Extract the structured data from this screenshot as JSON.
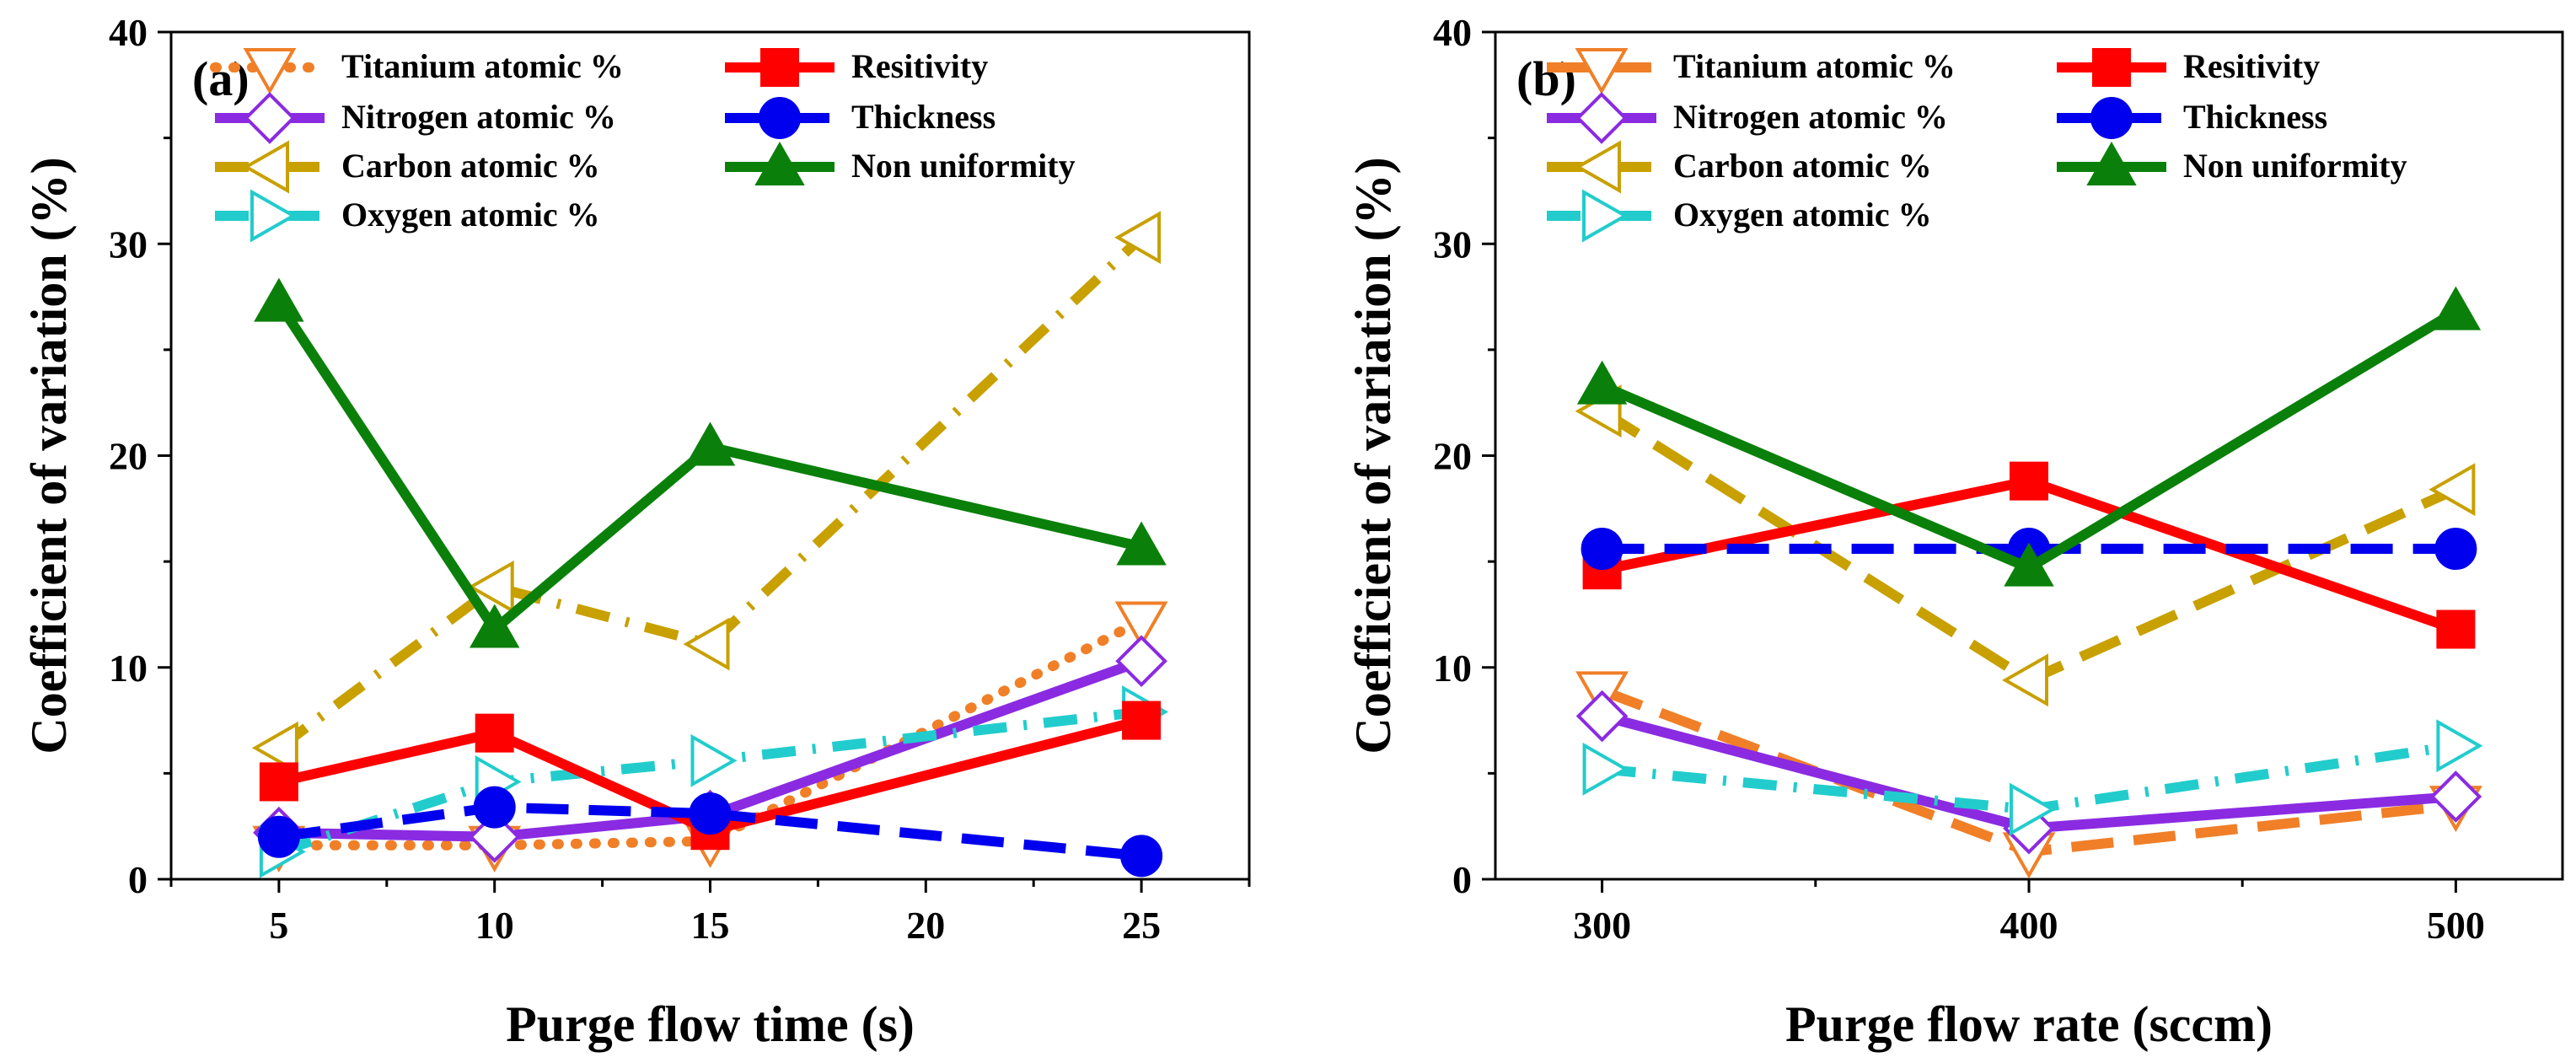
{
  "chart_data": [
    {
      "type": "line",
      "panel_label": "(a)",
      "xlabel": "Purge flow time (s)",
      "ylabel": "Coefficient of variation (%)",
      "x": [
        5,
        10,
        15,
        25
      ],
      "xticks": [
        "5",
        "10",
        "15",
        "20",
        "25"
      ],
      "xtick_values": [
        5,
        10,
        15,
        20,
        25
      ],
      "xlim": [
        2.5,
        27.5
      ],
      "ylim": [
        0,
        40
      ],
      "yticks": [
        "0",
        "10",
        "20",
        "30",
        "40"
      ],
      "ytick_values": [
        0,
        10,
        20,
        30,
        40
      ],
      "grid": false,
      "legend_position": "top",
      "series": [
        {
          "name": "Titanium atomic %",
          "values": [
            1.6,
            1.6,
            1.8,
            12.2
          ],
          "color": "#f07f28",
          "dash": "dot",
          "marker": "triangle-down-open"
        },
        {
          "name": "Nitrogen atomic %",
          "values": [
            2.2,
            2.0,
            3.0,
            10.3
          ],
          "color": "#8a2be2",
          "dash": "solid",
          "marker": "diamond-open"
        },
        {
          "name": "Carbon atomic %",
          "values": [
            6.2,
            13.8,
            11.1,
            30.3
          ],
          "color": "#c8a000",
          "dash": "dashdot",
          "marker": "triangle-left-open"
        },
        {
          "name": "Oxygen atomic %",
          "values": [
            1.3,
            4.6,
            5.6,
            7.9
          ],
          "color": "#22cccc",
          "dash": "dashdot",
          "marker": "triangle-right-open"
        },
        {
          "name": "Resitivity",
          "values": [
            4.6,
            6.9,
            2.3,
            7.5
          ],
          "color": "#ff0000",
          "dash": "solid",
          "marker": "square"
        },
        {
          "name": "Thickness",
          "values": [
            2.0,
            3.4,
            3.1,
            1.1
          ],
          "color": "#0000ee",
          "dash": "dash",
          "marker": "circle"
        },
        {
          "name": "Non uniformity",
          "values": [
            27.2,
            11.8,
            20.4,
            15.7
          ],
          "color": "#0a800a",
          "dash": "solid",
          "marker": "triangle-up"
        }
      ]
    },
    {
      "type": "line",
      "panel_label": "(b)",
      "xlabel": "Purge flow rate (sccm)",
      "ylabel": "Coefficient of variation (%)",
      "x": [
        300,
        400,
        500
      ],
      "xticks": [
        "300",
        "400",
        "500"
      ],
      "xtick_values": [
        300,
        400,
        500
      ],
      "xlim": [
        275,
        525
      ],
      "ylim": [
        0,
        40
      ],
      "yticks": [
        "0",
        "10",
        "20",
        "30",
        "40"
      ],
      "ytick_values": [
        0,
        10,
        20,
        30,
        40
      ],
      "grid": false,
      "legend_position": "top",
      "series": [
        {
          "name": "Titanium atomic %",
          "values": [
            8.9,
            1.3,
            3.5
          ],
          "color": "#f07f28",
          "dash": "dash",
          "marker": "triangle-down-open"
        },
        {
          "name": "Nitrogen atomic %",
          "values": [
            7.7,
            2.4,
            3.9
          ],
          "color": "#8a2be2",
          "dash": "solid",
          "marker": "diamond-open"
        },
        {
          "name": "Carbon atomic %",
          "values": [
            22.1,
            9.4,
            18.4
          ],
          "color": "#c8a000",
          "dash": "dash",
          "marker": "triangle-left-open"
        },
        {
          "name": "Oxygen atomic %",
          "values": [
            5.2,
            3.3,
            6.3
          ],
          "color": "#22cccc",
          "dash": "dashdot",
          "marker": "triangle-right-open"
        },
        {
          "name": "Resitivity",
          "values": [
            14.6,
            18.8,
            11.8
          ],
          "color": "#ff0000",
          "dash": "solid",
          "marker": "square"
        },
        {
          "name": "Thickness",
          "values": [
            15.6,
            15.6,
            15.6
          ],
          "color": "#0000ee",
          "dash": "dash",
          "marker": "circle"
        },
        {
          "name": "Non uniformity",
          "values": [
            23.3,
            14.7,
            26.8
          ],
          "color": "#0a800a",
          "dash": "solid",
          "marker": "triangle-up"
        }
      ]
    }
  ]
}
